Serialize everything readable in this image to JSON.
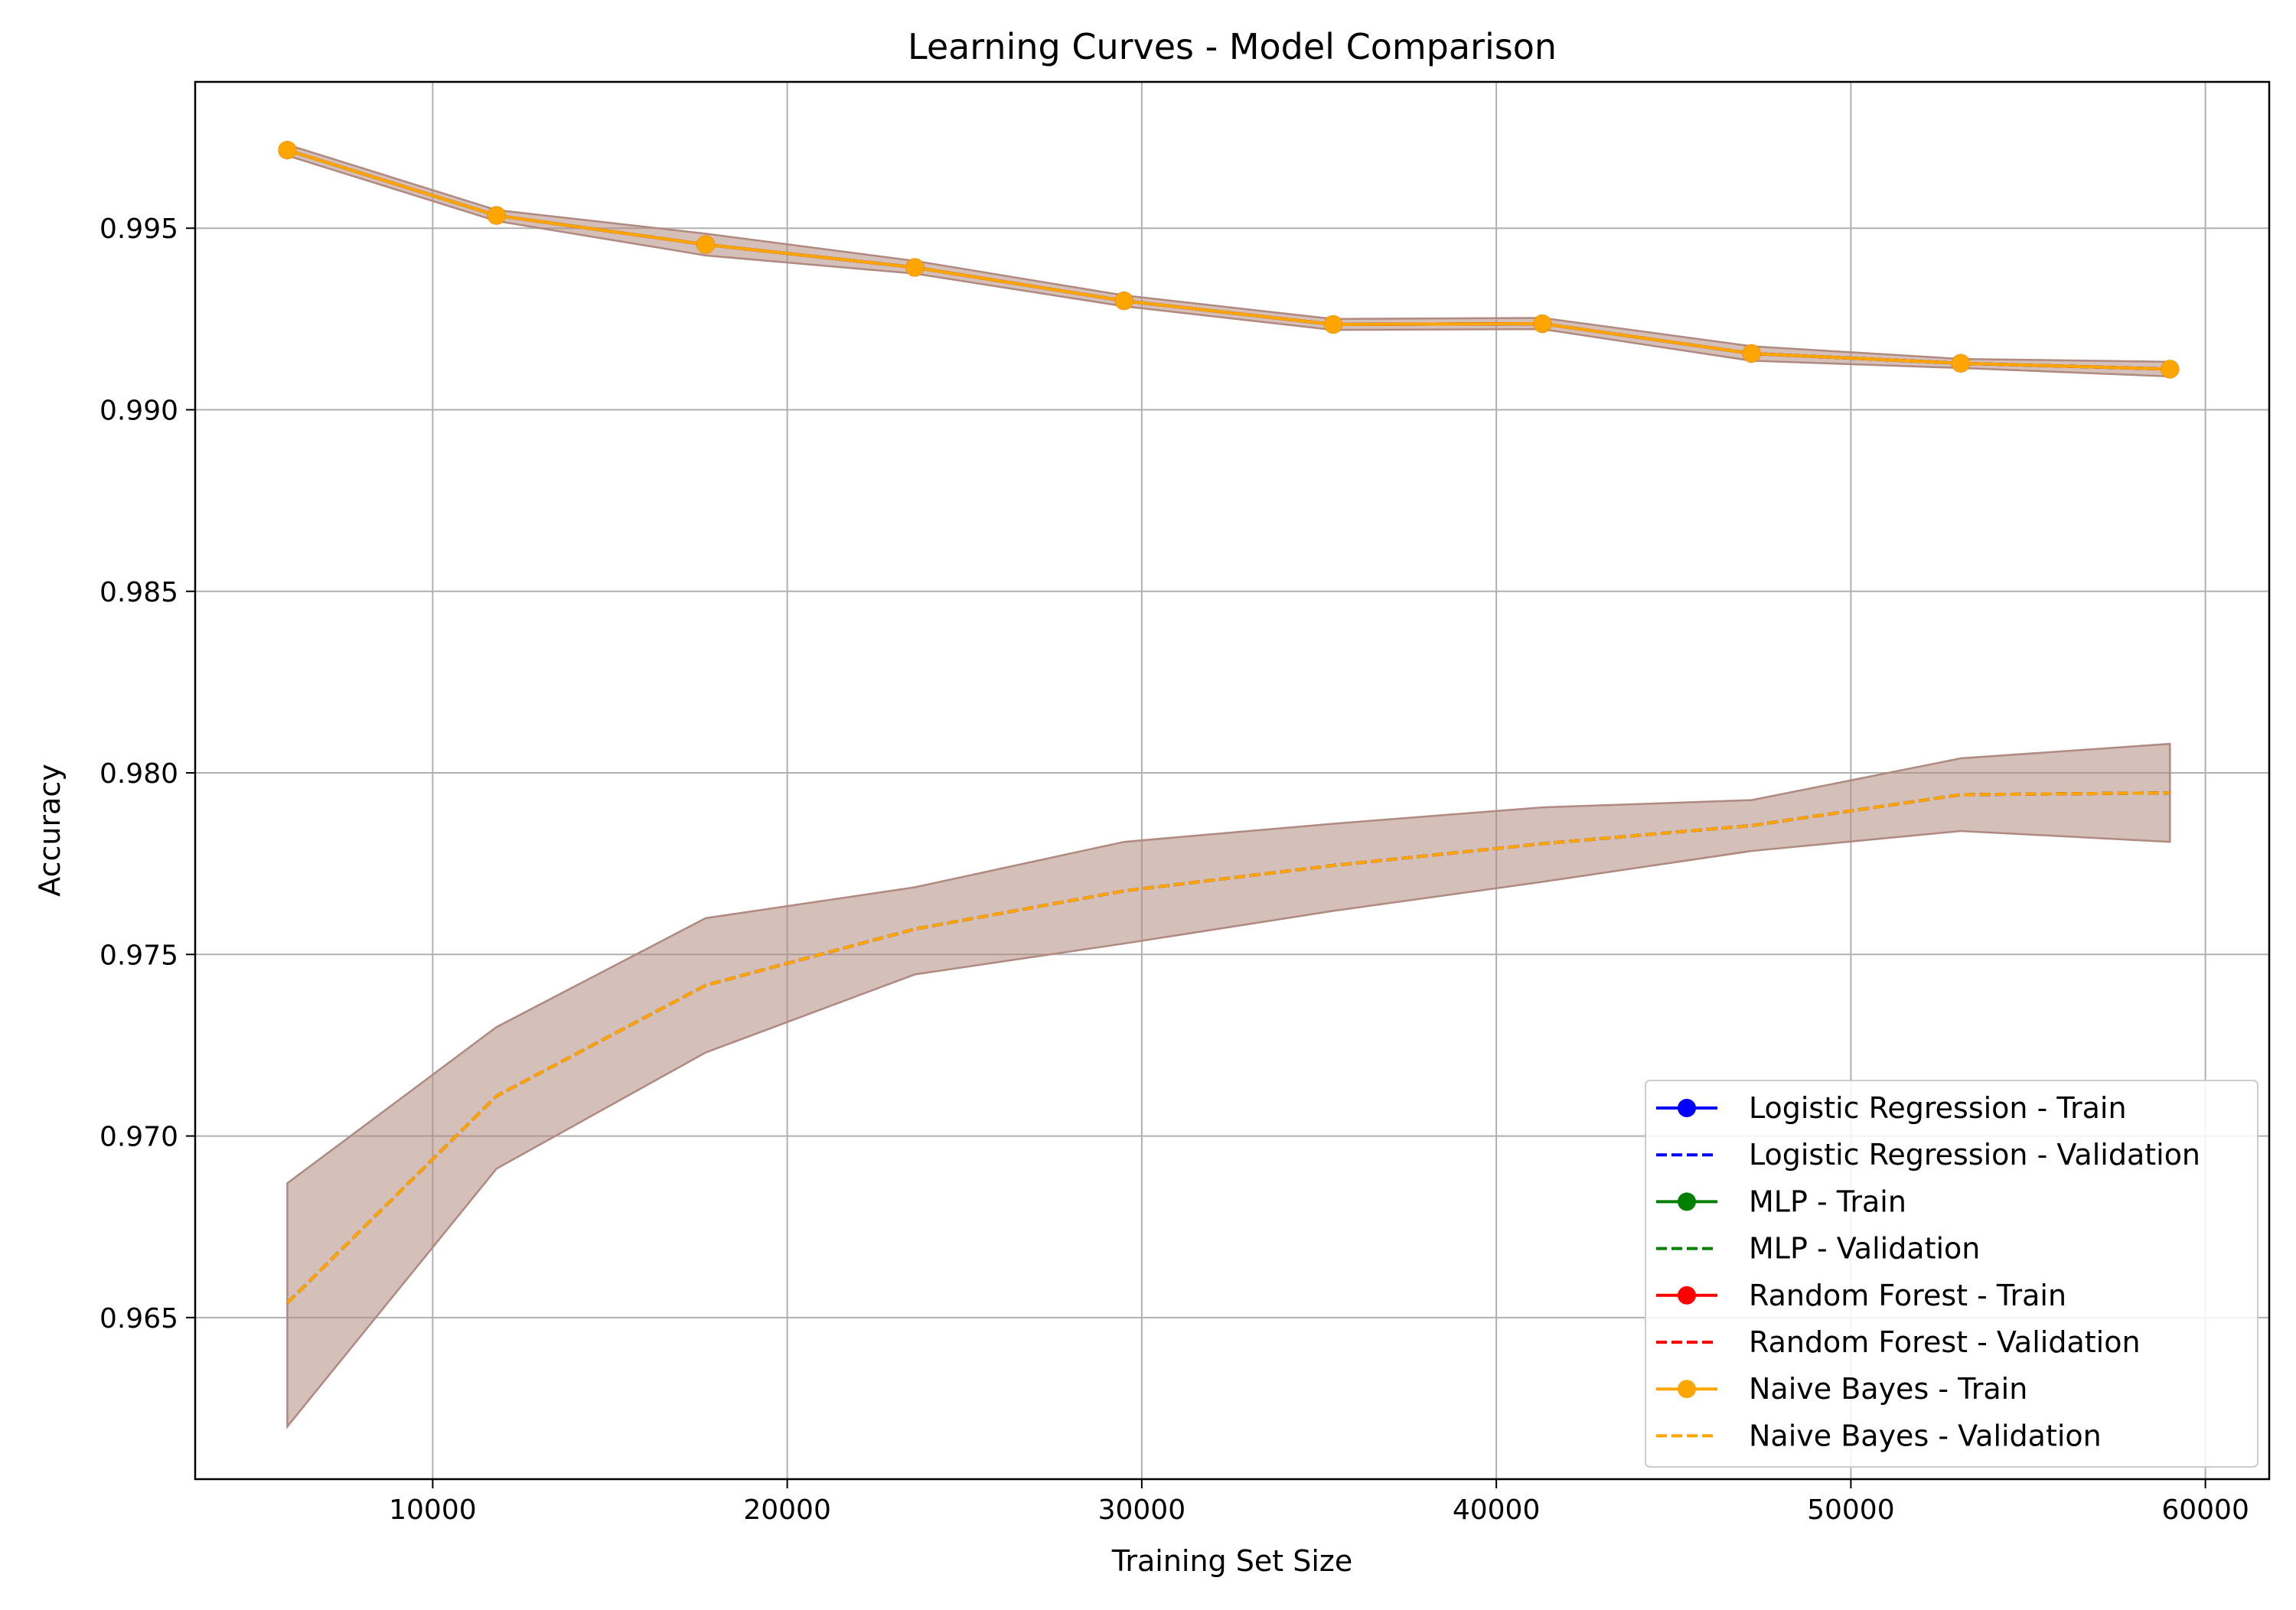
{
  "chart_data": {
    "type": "line",
    "title": "Learning Curves - Model Comparison",
    "xlabel": "Training Set Size",
    "ylabel": "Accuracy",
    "xlim": [
      3300,
      61800
    ],
    "ylim": [
      0.96055,
      0.99903
    ],
    "xticks": [
      10000,
      20000,
      30000,
      40000,
      50000,
      60000
    ],
    "yticks": [
      0.965,
      0.97,
      0.975,
      0.98,
      0.985,
      0.99,
      0.995
    ],
    "grid": true,
    "legend_position": "lower-right",
    "x": [
      5900,
      11800,
      17700,
      23600,
      29500,
      35400,
      41300,
      47200,
      53100,
      59000
    ],
    "series": [
      {
        "name": "Logistic Regression - Train",
        "color": "#0000ff",
        "style": "solid-marker",
        "values": [
          0.99715,
          0.99535,
          0.99455,
          0.99392,
          0.993,
          0.99235,
          0.99237,
          0.99155,
          0.99128,
          0.99112
        ]
      },
      {
        "name": "Logistic Regression - Validation",
        "color": "#0000ff",
        "style": "dashed",
        "values": [
          0.9654,
          0.9711,
          0.97415,
          0.9757,
          0.97675,
          0.97745,
          0.97805,
          0.97855,
          0.9794,
          0.97945
        ]
      },
      {
        "name": "MLP - Train",
        "color": "#008000",
        "style": "solid-marker",
        "values": [
          0.99715,
          0.99535,
          0.99455,
          0.99392,
          0.993,
          0.99235,
          0.99237,
          0.99155,
          0.99128,
          0.99112
        ]
      },
      {
        "name": "MLP - Validation",
        "color": "#008000",
        "style": "dashed",
        "values": [
          0.9654,
          0.9711,
          0.97415,
          0.9757,
          0.97675,
          0.97745,
          0.97805,
          0.97855,
          0.9794,
          0.97945
        ]
      },
      {
        "name": "Random Forest - Train",
        "color": "#ff0000",
        "style": "solid-marker",
        "values": [
          0.99715,
          0.99535,
          0.99455,
          0.99392,
          0.993,
          0.99235,
          0.99237,
          0.99155,
          0.99128,
          0.99112
        ]
      },
      {
        "name": "Random Forest - Validation",
        "color": "#ff0000",
        "style": "dashed",
        "values": [
          0.9654,
          0.9711,
          0.97415,
          0.9757,
          0.97675,
          0.97745,
          0.97805,
          0.97855,
          0.9794,
          0.97945
        ]
      },
      {
        "name": "Naive Bayes - Train",
        "color": "#ffa500",
        "style": "solid-marker",
        "values": [
          0.99715,
          0.99535,
          0.99455,
          0.99392,
          0.993,
          0.99235,
          0.99237,
          0.99155,
          0.99128,
          0.99112
        ]
      },
      {
        "name": "Naive Bayes - Validation",
        "color": "#ffa500",
        "style": "dashed",
        "values": [
          0.9654,
          0.9711,
          0.97415,
          0.9757,
          0.97675,
          0.97745,
          0.97805,
          0.97855,
          0.9794,
          0.97945
        ]
      }
    ],
    "bands": [
      {
        "name": "Train std band",
        "lower": [
          0.997,
          0.9952,
          0.99425,
          0.99375,
          0.99285,
          0.9922,
          0.99222,
          0.99135,
          0.99115,
          0.99092
        ],
        "upper": [
          0.9973,
          0.9955,
          0.99485,
          0.9941,
          0.99315,
          0.9925,
          0.99253,
          0.99175,
          0.9914,
          0.99132
        ]
      },
      {
        "name": "Validation std band",
        "lower": [
          0.962,
          0.9691,
          0.9723,
          0.97445,
          0.9753,
          0.9762,
          0.977,
          0.97785,
          0.9784,
          0.9781
        ],
        "upper": [
          0.9687,
          0.973,
          0.976,
          0.97685,
          0.9781,
          0.9786,
          0.97905,
          0.97925,
          0.9804,
          0.9808
        ]
      }
    ],
    "band_color": "#b08a80"
  }
}
